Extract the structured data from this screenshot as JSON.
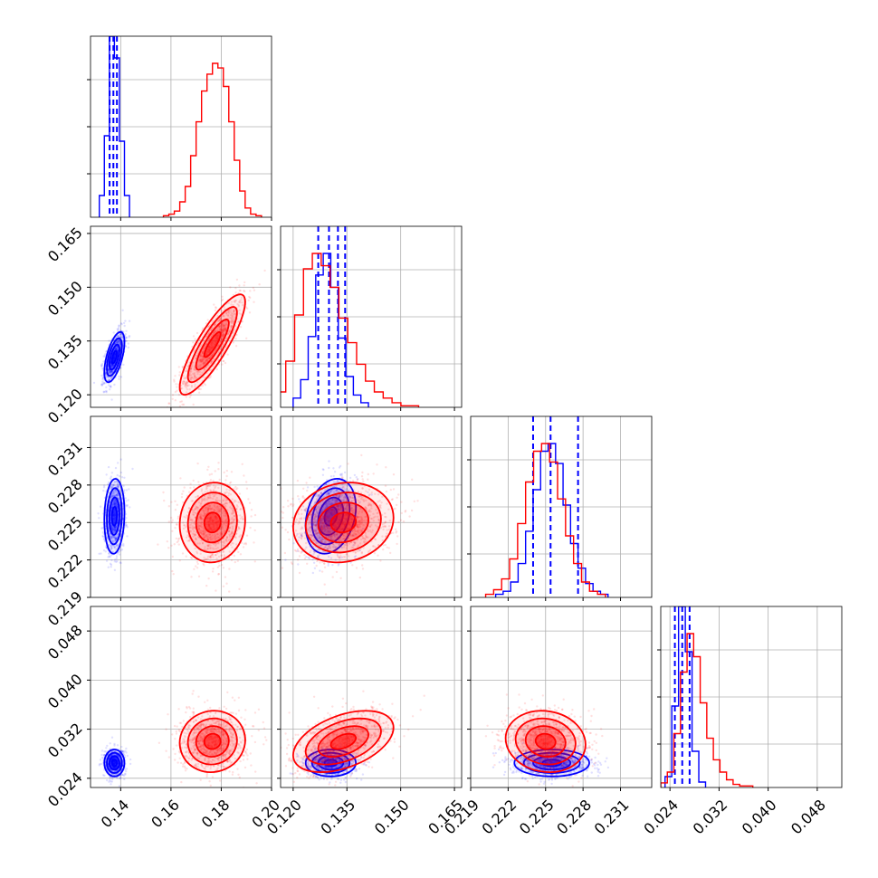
{
  "chart_data": {
    "type": "corner",
    "parameters": [
      {
        "ticks": [
          "0.14",
          "0.16",
          "0.18",
          "0.20"
        ],
        "range": [
          0.128,
          0.2
        ]
      },
      {
        "ticks": [
          "0.120",
          "0.135",
          "0.150",
          "0.165"
        ],
        "range": [
          0.1165,
          0.167
        ]
      },
      {
        "ticks": [
          "0.219",
          "0.222",
          "0.225",
          "0.228",
          "0.231"
        ],
        "range": [
          0.219,
          0.2335
        ]
      },
      {
        "ticks": [
          "0.024",
          "0.032",
          "0.040",
          "0.048"
        ],
        "range": [
          0.0225,
          0.052
        ]
      }
    ],
    "series": [
      {
        "color": "#0000ff",
        "mean": [
          0.1375,
          0.1305,
          0.2255,
          0.0265
        ],
        "std": [
          0.002,
          0.0035,
          0.0015,
          0.0011
        ],
        "correlations": {
          "1-0": 0.6,
          "2-0": 0.1,
          "3-0": 0.0,
          "2-1": 0.25,
          "3-1": 0.0,
          "3-2": 0.0
        },
        "hist_heights": [
          [
            0.12,
            0.45,
            1.0,
            0.88,
            0.42,
            0.12
          ],
          [
            0.06,
            0.18,
            0.46,
            0.86,
            1.0,
            0.78,
            0.45,
            0.2,
            0.08,
            0.03
          ],
          [
            0.02,
            0.04,
            0.1,
            0.22,
            0.43,
            0.7,
            0.95,
            1.0,
            0.87,
            0.6,
            0.35,
            0.19,
            0.09,
            0.04,
            0.02
          ],
          [
            0.06,
            0.45,
            1.0,
            0.75,
            0.2,
            0.03
          ]
        ],
        "quantile_lines": [
          [
            0.1356,
            0.1371,
            0.1385
          ],
          [
            0.127,
            0.13,
            0.1325,
            0.1345
          ],
          [
            0.224,
            0.2254,
            0.2276
          ],
          [
            0.0248,
            0.026,
            0.0272
          ]
        ]
      },
      {
        "color": "#ff0000",
        "mean": [
          0.1765,
          0.134,
          0.225,
          0.03
        ],
        "std": [
          0.0065,
          0.007,
          0.0016,
          0.0025
        ],
        "correlations": {
          "1-0": 0.85,
          "2-0": 0.05,
          "3-0": 0.05,
          "2-1": 0.12,
          "3-1": 0.45,
          "3-2": -0.1
        },
        "hist_heights": [
          [
            0.01,
            0.02,
            0.04,
            0.1,
            0.2,
            0.4,
            0.62,
            0.82,
            0.93,
            1.0,
            0.97,
            0.85,
            0.62,
            0.37,
            0.17,
            0.06,
            0.02,
            0.01
          ],
          [
            0.02,
            0.1,
            0.3,
            0.6,
            0.9,
            1.0,
            0.92,
            0.78,
            0.58,
            0.42,
            0.28,
            0.17,
            0.1,
            0.06,
            0.03,
            0.01,
            0.01
          ],
          [
            0.02,
            0.05,
            0.12,
            0.25,
            0.48,
            0.75,
            0.95,
            1.0,
            0.88,
            0.64,
            0.4,
            0.22,
            0.1,
            0.04,
            0.02
          ],
          [
            0.03,
            0.1,
            0.35,
            0.75,
            1.0,
            0.85,
            0.55,
            0.32,
            0.18,
            0.1,
            0.05,
            0.02,
            0.01,
            0.01
          ]
        ]
      }
    ],
    "grid": true,
    "contour_levels": [
      0.5,
      1.0,
      1.5,
      2.0
    ]
  }
}
